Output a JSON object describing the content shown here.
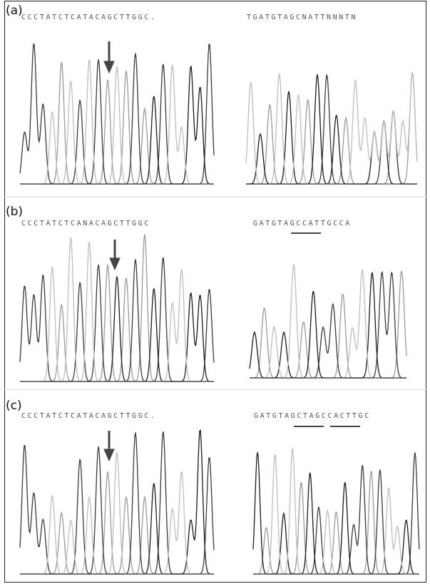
{
  "panels": [
    {
      "label": "(a)",
      "left_sequence": "CCCTATCTCATACAGCTTGGC.",
      "right_sequence": "TGATGTAGCNATTNNNTN"
    },
    {
      "label": "(b)",
      "left_sequence": "CCCTATCTCANACAGCTTGGC",
      "right_sequence": "GATGTAGCCATTGCCA"
    },
    {
      "label": "(c)",
      "left_sequence": "CCCTATCTCATACAGCTTGGC.",
      "right_sequence": "GATGTAGCTAGCCACTTGC"
    }
  ]
}
